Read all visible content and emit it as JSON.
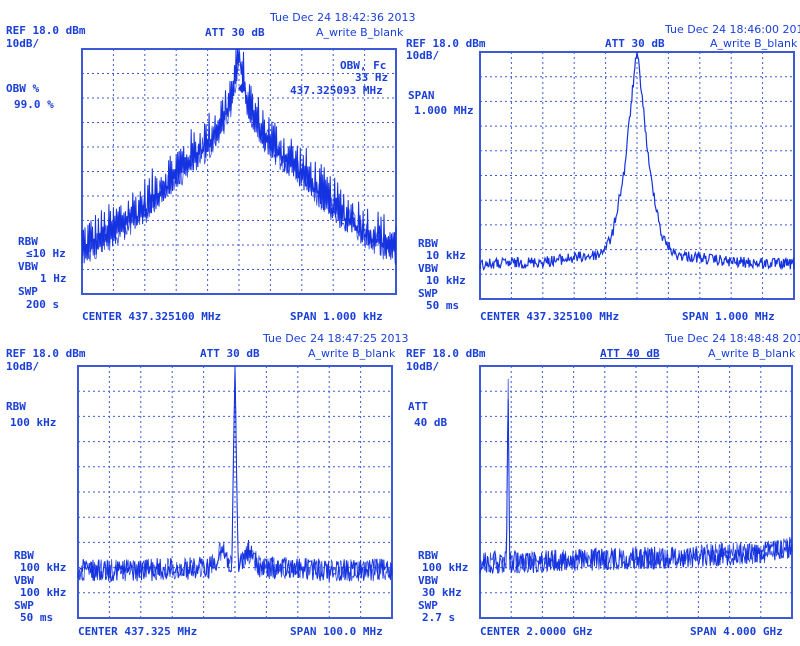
{
  "colors": {
    "trace": "#1533e0",
    "grid": "#3c5ad8",
    "text": "#1a3fd8",
    "background": "#ffffff"
  },
  "panels": [
    {
      "timestamp": "Tue Dec 24 18:42:36 2013",
      "ref": "REF 18.0 dBm",
      "scale": "10dB/",
      "att": "ATT 30 dB",
      "trace_mode": "A_write B_blank",
      "left_labels": [
        "OBW %",
        "99.0 %"
      ],
      "marker": [
        "OBW, Fc",
        "33 Hz",
        "437.325093 MHz"
      ],
      "bottom_left": [
        "RBW",
        "≤10 Hz",
        "VBW",
        "1 Hz",
        "SWP",
        "200 s"
      ],
      "center": "CENTER 437.325100 MHz",
      "span": "SPAN 1.000 kHz"
    },
    {
      "timestamp": "Tue Dec 24 18:46:00 2013",
      "ref": "REF 18.0 dBm",
      "scale": "10dB/",
      "att": "ATT 30 dB",
      "trace_mode": "A_write B_blank",
      "left_labels": [
        "SPAN",
        "1.000 MHz"
      ],
      "marker": [],
      "bottom_left": [
        "RBW",
        "10 kHz",
        "VBW",
        "10 kHz",
        "SWP",
        "50 ms"
      ],
      "center": "CENTER 437.325100 MHz",
      "span": "SPAN 1.000 MHz"
    },
    {
      "timestamp": "Tue Dec 24 18:47:25 2013",
      "ref": "REF 18.0 dBm",
      "scale": "10dB/",
      "att": "ATT 30 dB",
      "trace_mode": "A_write B_blank",
      "left_labels": [
        "RBW",
        "100 kHz"
      ],
      "marker": [],
      "bottom_left": [
        "RBW",
        "100 kHz",
        "VBW",
        "100 kHz",
        "SWP",
        "50 ms"
      ],
      "center": "CENTER 437.325 MHz",
      "span": "SPAN 100.0 MHz"
    },
    {
      "timestamp": "Tue Dec 24 18:48:48 2013",
      "ref": "REF 18.0 dBm",
      "scale": "10dB/",
      "att": "ATT 40 dB",
      "trace_mode": "A_write B_blank",
      "left_labels": [
        "ATT",
        "40 dB"
      ],
      "marker": [],
      "bottom_left": [
        "RBW",
        "100 kHz",
        "VBW",
        "30 kHz",
        "SWP",
        "2.7 s"
      ],
      "center": "CENTER 2.0000 GHz",
      "span": "SPAN 4.000 GHz"
    }
  ],
  "chart_data": [
    {
      "type": "line",
      "title": "",
      "xlabel": "",
      "ylabel": "",
      "x_divisions": 10,
      "y_divisions": 10,
      "grid": true,
      "x_center_mhz": 437.3251,
      "x_span_khz": 1.0,
      "description_series": [
        {
          "x_div": [
            0,
            1,
            2,
            3,
            4,
            4.5,
            4.8,
            5,
            5.2,
            5.5,
            6,
            7,
            8,
            9,
            10
          ],
          "y_div_from_top": [
            8.3,
            7.6,
            6.6,
            5.2,
            4.0,
            3.0,
            2.0,
            0.2,
            2.0,
            3.0,
            4.0,
            5.2,
            6.6,
            7.6,
            8.3
          ]
        }
      ]
    },
    {
      "type": "line",
      "title": "",
      "xlabel": "",
      "ylabel": "",
      "x_divisions": 10,
      "y_divisions": 10,
      "grid": true,
      "x_center_mhz": 437.3251,
      "x_span_mhz": 1.0,
      "description_series": [
        {
          "x_div": [
            0,
            2,
            3.8,
            4.2,
            4.6,
            4.9,
            5.0,
            5.1,
            5.4,
            5.8,
            6.2,
            8,
            10
          ],
          "y_div_from_top": [
            8.6,
            8.5,
            8.2,
            7.5,
            4.8,
            1.0,
            0.0,
            1.0,
            4.8,
            7.5,
            8.2,
            8.5,
            8.6
          ]
        }
      ]
    },
    {
      "type": "line",
      "title": "",
      "xlabel": "",
      "ylabel": "",
      "x_divisions": 10,
      "y_divisions": 10,
      "grid": true,
      "x_center_mhz": 437.325,
      "x_span_mhz": 100.0,
      "description_series": [
        {
          "x_div": [
            0,
            2,
            4.2,
            4.6,
            4.9,
            5.0,
            5.1,
            5.4,
            5.8,
            8,
            10
          ],
          "y_div_from_top": [
            8.1,
            8.1,
            8.0,
            7.3,
            8.0,
            0.0,
            8.0,
            7.3,
            8.0,
            8.1,
            8.1
          ]
        }
      ]
    },
    {
      "type": "line",
      "title": "",
      "xlabel": "",
      "ylabel": "",
      "x_divisions": 10,
      "y_divisions": 10,
      "grid": true,
      "x_center_ghz": 2.0,
      "x_span_ghz": 4.0,
      "description_series": [
        {
          "x_div": [
            0,
            0.85,
            0.9,
            0.95,
            3,
            6,
            9,
            10
          ],
          "y_div_from_top": [
            7.8,
            7.8,
            0.2,
            7.8,
            7.7,
            7.6,
            7.4,
            7.2
          ]
        }
      ]
    }
  ]
}
